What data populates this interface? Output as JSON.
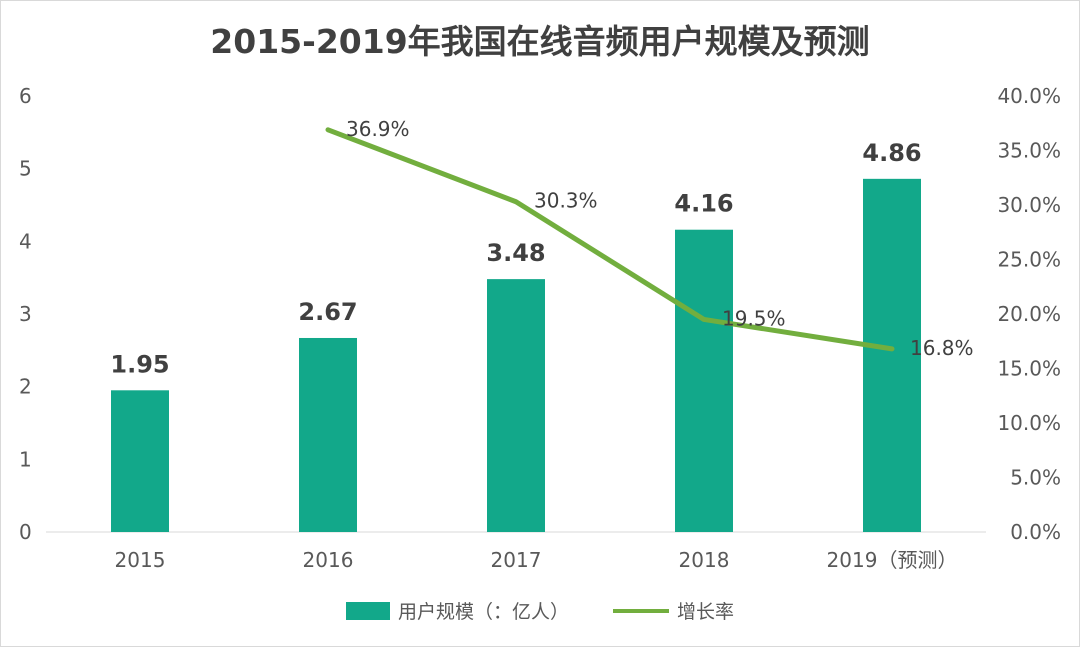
{
  "colors": {
    "bar": "#12A88A",
    "line": "#72AE3E"
  },
  "chart_data": {
    "type": "bar+line",
    "title": "2015-2019年我国在线音频用户规模及预测",
    "categories": [
      "2015",
      "2016",
      "2017",
      "2018",
      "2019（预测）"
    ],
    "series": [
      {
        "name": "用户规模（：亿人）",
        "type": "bar",
        "axis": "left",
        "values": [
          1.95,
          2.67,
          3.48,
          4.16,
          4.86
        ],
        "labels": [
          "1.95",
          "2.67",
          "3.48",
          "4.16",
          "4.86"
        ]
      },
      {
        "name": "增长率",
        "type": "line",
        "axis": "right",
        "values": [
          null,
          36.9,
          30.3,
          19.5,
          16.8
        ],
        "labels": [
          null,
          "36.9%",
          "30.3%",
          "19.5%",
          "16.8%"
        ]
      }
    ],
    "y_left": {
      "min": 0,
      "max": 6,
      "ticks": [
        "0",
        "1",
        "2",
        "3",
        "4",
        "5",
        "6"
      ]
    },
    "y_right": {
      "min": 0,
      "max": 40,
      "ticks": [
        "0.0%",
        "5.0%",
        "10.0%",
        "15.0%",
        "20.0%",
        "25.0%",
        "30.0%",
        "35.0%",
        "40.0%"
      ]
    },
    "legend_position": "bottom"
  }
}
